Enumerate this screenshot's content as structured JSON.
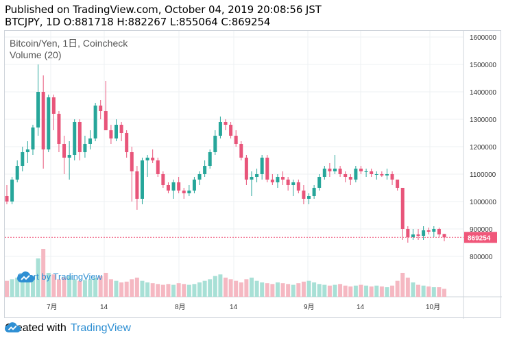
{
  "header": {
    "published": "Published on TradingView.com, October 04, 2019 20:08:56 JST",
    "ohlc": "BTCJPY, 1D O:881718 H:882267 L:855064 C:869254"
  },
  "legend": {
    "title": "Bitcoin/Yen, 1日, Coincheck",
    "volume": "Volume (20)"
  },
  "watermark": {
    "text": "Chart by TradingView"
  },
  "footer": {
    "created_with": "Created with",
    "brand": "TradingView"
  },
  "colors": {
    "up": "#26a69a",
    "down": "#ef5350",
    "last_price": "#f0577a"
  },
  "chart_data": {
    "type": "candlestick",
    "y_ticks": [
      800000,
      900000,
      1000000,
      1100000,
      1200000,
      1300000,
      1400000,
      1500000,
      1600000
    ],
    "y_tick_labels": [
      "800000",
      "900000",
      "1000000",
      "1100000",
      "1200000",
      "1300000",
      "1400000",
      "1500000",
      "1600000"
    ],
    "x_tick_labels": [
      "7月",
      "14",
      "8月",
      "14",
      "9月",
      "14",
      "10月"
    ],
    "last_price": 869254,
    "last_price_label": "869254",
    "ohlc_last": {
      "open": 881718,
      "high": 882267,
      "low": 855064,
      "close": 869254
    },
    "candles": [
      [
        1020000,
        1060000,
        990000,
        1000000
      ],
      [
        1000000,
        1090000,
        990000,
        1080000
      ],
      [
        1080000,
        1150000,
        1070000,
        1130000
      ],
      [
        1130000,
        1200000,
        1110000,
        1180000
      ],
      [
        1180000,
        1220000,
        1140000,
        1190000
      ],
      [
        1190000,
        1280000,
        1170000,
        1270000
      ],
      [
        1270000,
        1500000,
        1240000,
        1400000
      ],
      [
        1400000,
        1460000,
        1120000,
        1190000
      ],
      [
        1190000,
        1390000,
        1180000,
        1380000
      ],
      [
        1380000,
        1390000,
        1260000,
        1320000
      ],
      [
        1320000,
        1330000,
        1180000,
        1210000
      ],
      [
        1210000,
        1240000,
        1100000,
        1160000
      ],
      [
        1160000,
        1220000,
        1080000,
        1170000
      ],
      [
        1170000,
        1300000,
        1150000,
        1290000
      ],
      [
        1290000,
        1300000,
        1150000,
        1180000
      ],
      [
        1180000,
        1240000,
        1160000,
        1210000
      ],
      [
        1210000,
        1260000,
        1190000,
        1230000
      ],
      [
        1230000,
        1360000,
        1220000,
        1350000
      ],
      [
        1350000,
        1370000,
        1300000,
        1330000
      ],
      [
        1330000,
        1440000,
        1260000,
        1260000
      ],
      [
        1260000,
        1280000,
        1210000,
        1230000
      ],
      [
        1230000,
        1300000,
        1220000,
        1280000
      ],
      [
        1280000,
        1290000,
        1220000,
        1250000
      ],
      [
        1250000,
        1260000,
        1160000,
        1180000
      ],
      [
        1180000,
        1200000,
        1000000,
        1110000
      ],
      [
        1110000,
        1130000,
        970000,
        1010000
      ],
      [
        1010000,
        1160000,
        990000,
        1150000
      ],
      [
        1150000,
        1170000,
        1090000,
        1160000
      ],
      [
        1160000,
        1190000,
        1140000,
        1150000
      ],
      [
        1150000,
        1160000,
        1090000,
        1100000
      ],
      [
        1100000,
        1110000,
        1050000,
        1060000
      ],
      [
        1060000,
        1070000,
        1030000,
        1040000
      ],
      [
        1040000,
        1080000,
        1010000,
        1070000
      ],
      [
        1070000,
        1090000,
        1030000,
        1040000
      ],
      [
        1040000,
        1050000,
        1010000,
        1030000
      ],
      [
        1030000,
        1060000,
        1020000,
        1040000
      ],
      [
        1040000,
        1090000,
        1030000,
        1080000
      ],
      [
        1080000,
        1110000,
        1060000,
        1100000
      ],
      [
        1100000,
        1150000,
        1090000,
        1130000
      ],
      [
        1130000,
        1190000,
        1120000,
        1180000
      ],
      [
        1180000,
        1260000,
        1170000,
        1240000
      ],
      [
        1240000,
        1310000,
        1230000,
        1290000
      ],
      [
        1290000,
        1300000,
        1260000,
        1280000
      ],
      [
        1280000,
        1290000,
        1230000,
        1240000
      ],
      [
        1240000,
        1260000,
        1200000,
        1210000
      ],
      [
        1210000,
        1220000,
        1150000,
        1160000
      ],
      [
        1160000,
        1170000,
        1060000,
        1080000
      ],
      [
        1080000,
        1110000,
        1020000,
        1090000
      ],
      [
        1090000,
        1120000,
        1070000,
        1100000
      ],
      [
        1100000,
        1170000,
        1080000,
        1160000
      ],
      [
        1160000,
        1170000,
        1070000,
        1080000
      ],
      [
        1080000,
        1100000,
        1060000,
        1070000
      ],
      [
        1070000,
        1100000,
        1050000,
        1090000
      ],
      [
        1090000,
        1110000,
        1060000,
        1080000
      ],
      [
        1080000,
        1090000,
        1040000,
        1060000
      ],
      [
        1060000,
        1080000,
        1020000,
        1070000
      ],
      [
        1070000,
        1080000,
        1030000,
        1040000
      ],
      [
        1040000,
        1060000,
        990000,
        1010000
      ],
      [
        1010000,
        1030000,
        990000,
        1020000
      ],
      [
        1020000,
        1060000,
        1010000,
        1050000
      ],
      [
        1050000,
        1100000,
        1040000,
        1090000
      ],
      [
        1090000,
        1130000,
        1080000,
        1120000
      ],
      [
        1120000,
        1140000,
        1090000,
        1110000
      ],
      [
        1110000,
        1170000,
        1100000,
        1120000
      ],
      [
        1120000,
        1130000,
        1090000,
        1100000
      ],
      [
        1100000,
        1110000,
        1070000,
        1090000
      ],
      [
        1090000,
        1100000,
        1060000,
        1080000
      ],
      [
        1080000,
        1130000,
        1070000,
        1120000
      ],
      [
        1120000,
        1130000,
        1100000,
        1110000
      ],
      [
        1110000,
        1120000,
        1090000,
        1110000
      ],
      [
        1110000,
        1120000,
        1090000,
        1100000
      ],
      [
        1100000,
        1110000,
        1080000,
        1100000
      ],
      [
        1100000,
        1110000,
        1090000,
        1095000
      ],
      [
        1095000,
        1120000,
        1080000,
        1100000
      ],
      [
        1100000,
        1110000,
        1060000,
        1080000
      ],
      [
        1080000,
        1080000,
        1040000,
        1050000
      ],
      [
        1050000,
        1050000,
        860000,
        900000
      ],
      [
        900000,
        910000,
        850000,
        870000
      ],
      [
        870000,
        900000,
        860000,
        880000
      ],
      [
        880000,
        900000,
        860000,
        875000
      ],
      [
        875000,
        910000,
        860000,
        895000
      ],
      [
        895000,
        905000,
        880000,
        890000
      ],
      [
        890000,
        910000,
        870000,
        900000
      ],
      [
        900000,
        905000,
        870000,
        880000
      ],
      [
        881718,
        882267,
        855064,
        869254
      ]
    ],
    "volumes": [
      20,
      22,
      24,
      22,
      23,
      26,
      48,
      60,
      30,
      28,
      22,
      24,
      26,
      22,
      20,
      21,
      22,
      24,
      26,
      30,
      22,
      20,
      18,
      19,
      22,
      24,
      20,
      18,
      17,
      16,
      15,
      16,
      15,
      17,
      16,
      15,
      16,
      18,
      20,
      22,
      26,
      28,
      24,
      22,
      20,
      18,
      22,
      24,
      20,
      18,
      17,
      16,
      18,
      17,
      16,
      15,
      17,
      19,
      20,
      18,
      16,
      15,
      14,
      15,
      16,
      14,
      13,
      14,
      15,
      14,
      13,
      14,
      13,
      12,
      14,
      20,
      30,
      24,
      18,
      15,
      14,
      13,
      12,
      12,
      10
    ]
  }
}
